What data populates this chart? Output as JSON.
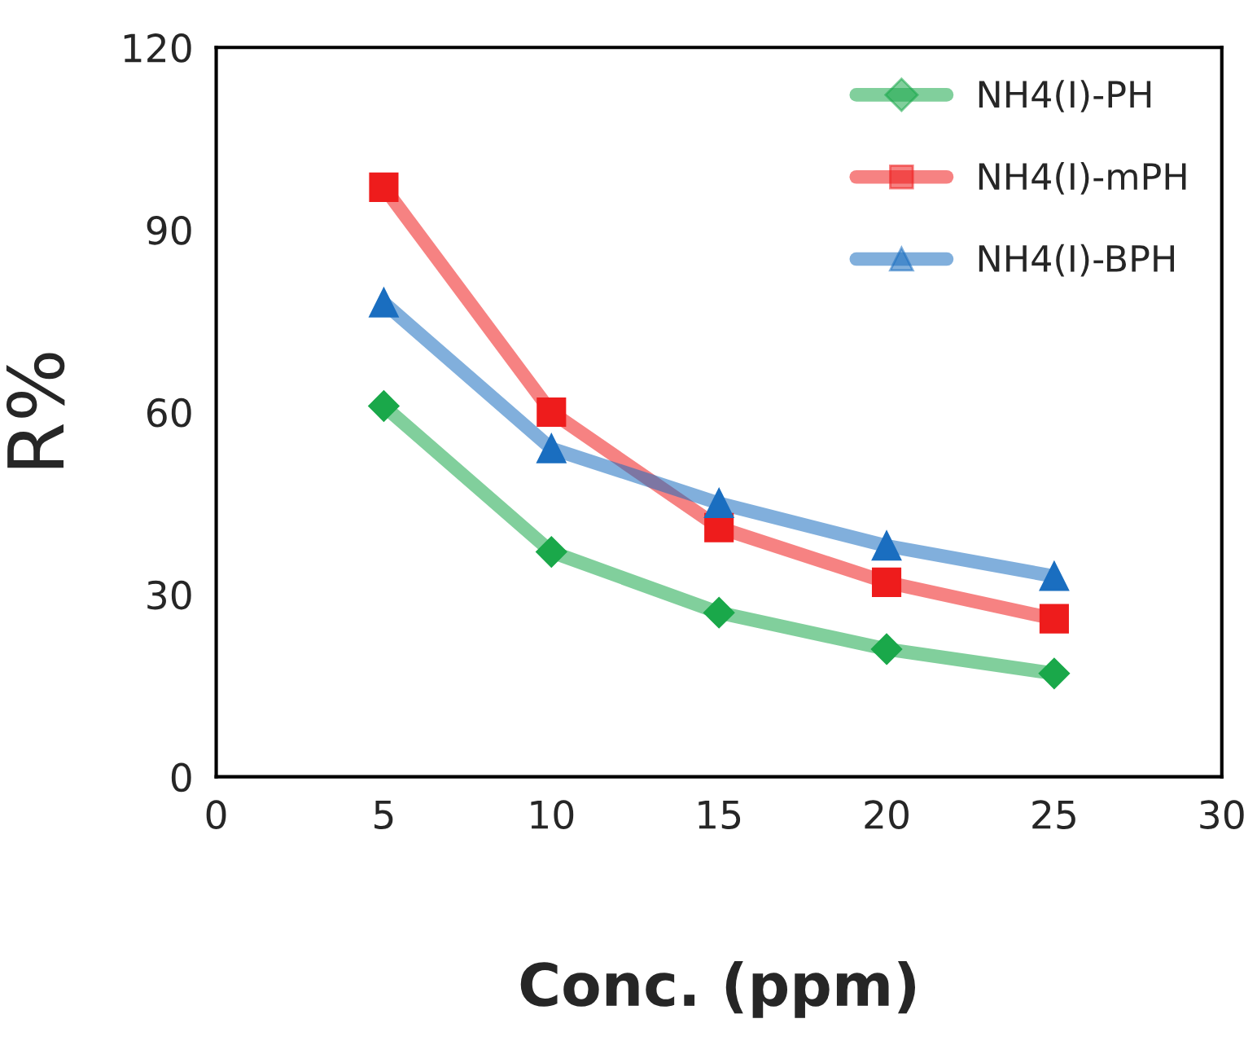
{
  "chart_data": {
    "type": "line",
    "xlabel": "Conc. (ppm)",
    "ylabel": "R%",
    "x": [
      5,
      10,
      15,
      20,
      25
    ],
    "series": [
      {
        "name": "NH4(I)-PH",
        "color": "#1aa84a",
        "marker": "diamond",
        "values": [
          61,
          37,
          27,
          21,
          17
        ]
      },
      {
        "name": "NH4(I)-mPH",
        "color": "#ee1c1c",
        "marker": "square",
        "values": [
          97,
          60,
          41,
          32,
          26
        ]
      },
      {
        "name": "NH4(I)-BPH",
        "color": "#1a6ec0",
        "marker": "triangle",
        "values": [
          78,
          54,
          45,
          38,
          33
        ]
      }
    ],
    "xlim": [
      0,
      30
    ],
    "xticks": [
      0,
      5,
      10,
      15,
      20,
      25,
      30
    ],
    "ylim": [
      0,
      120
    ],
    "yticks": [
      0,
      30,
      60,
      90,
      120
    ],
    "grid": false,
    "legend": "top right"
  }
}
